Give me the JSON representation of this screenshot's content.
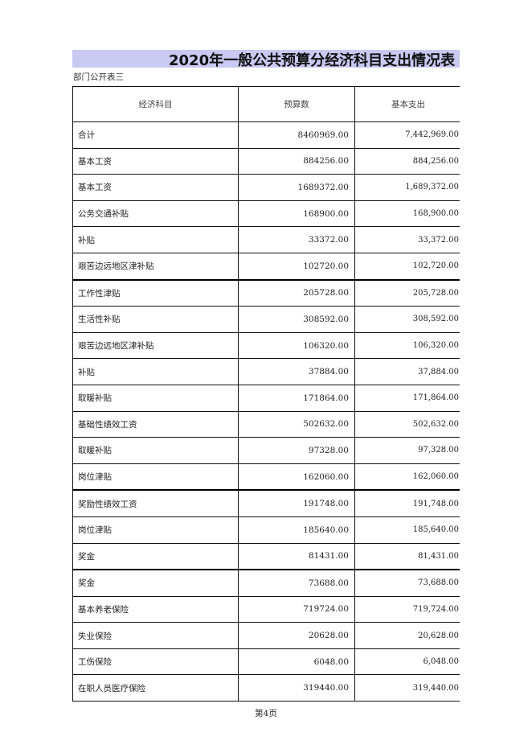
{
  "title": "2020年一般公共预算分经济科目支出情况表",
  "subtitle": "部门公开表三",
  "headers": [
    "经济科目",
    "预算数",
    "基本支出"
  ],
  "rows": [
    {
      "name": "合计",
      "budget": "8460969.00",
      "basic": "7,442,969.00"
    },
    {
      "name": "基本工资",
      "budget": "884256.00",
      "basic": "884,256.00"
    },
    {
      "name": "基本工资",
      "budget": "1689372.00",
      "basic": "1,689,372.00"
    },
    {
      "name": "公务交通补贴",
      "budget": "168900.00",
      "basic": "168,900.00"
    },
    {
      "name": "补贴",
      "budget": "33372.00",
      "basic": "33,372.00"
    },
    {
      "name": "艰苦边远地区津补贴",
      "budget": "102720.00",
      "basic": "102,720.00"
    },
    {
      "name": "工作性津贴",
      "budget": "205728.00",
      "basic": "205,728.00"
    },
    {
      "name": "生活性补贴",
      "budget": "308592.00",
      "basic": "308,592.00"
    },
    {
      "name": "艰苦边远地区津补贴",
      "budget": "106320.00",
      "basic": "106,320.00"
    },
    {
      "name": "补贴",
      "budget": "37884.00",
      "basic": "37,884.00"
    },
    {
      "name": "取暖补贴",
      "budget": "171864.00",
      "basic": "171,864.00"
    },
    {
      "name": "基础性绩效工资",
      "budget": "502632.00",
      "basic": "502,632.00"
    },
    {
      "name": "取暖补贴",
      "budget": "97328.00",
      "basic": "97,328.00"
    },
    {
      "name": "岗位津贴",
      "budget": "162060.00",
      "basic": "162,060.00"
    },
    {
      "name": "奖励性绩效工资",
      "budget": "191748.00",
      "basic": "191,748.00"
    },
    {
      "name": "岗位津贴",
      "budget": "185640.00",
      "basic": "185,640.00"
    },
    {
      "name": "奖金",
      "budget": "81431.00",
      "basic": "81,431.00"
    },
    {
      "name": "奖金",
      "budget": "73688.00",
      "basic": "73,688.00"
    },
    {
      "name": "基本养老保险",
      "budget": "719724.00",
      "basic": "719,724.00"
    },
    {
      "name": "失业保险",
      "budget": "20628.00",
      "basic": "20,628.00"
    },
    {
      "name": "工伤保险",
      "budget": "6048.00",
      "basic": "6,048.00"
    },
    {
      "name": "在职人员医疗保险",
      "budget": "319440.00",
      "basic": "319,440.00"
    }
  ],
  "footer": "第4页",
  "colors": {
    "title_band": "#c9c9f2"
  }
}
